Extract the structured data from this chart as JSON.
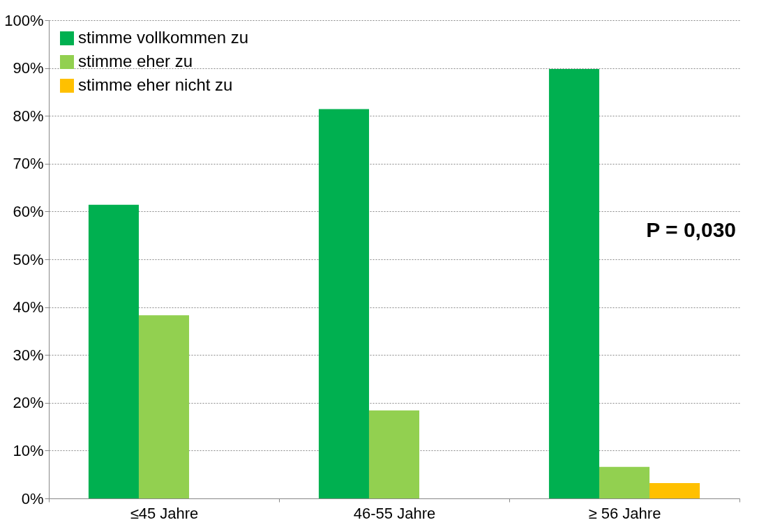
{
  "chart_data": {
    "type": "bar",
    "categories": [
      "≤45 Jahre",
      "46-55 Jahre",
      "≥ 56 Jahre"
    ],
    "series": [
      {
        "name": "stimme vollkommen zu",
        "color": "#00b050",
        "values": [
          61.4,
          81.4,
          89.8
        ]
      },
      {
        "name": "stimme eher zu",
        "color": "#92d050",
        "values": [
          38.3,
          18.4,
          6.6
        ]
      },
      {
        "name": "stimme eher nicht zu",
        "color": "#ffc000",
        "values": [
          null,
          null,
          3.2
        ]
      }
    ],
    "ylim": [
      0,
      100
    ],
    "yticks": [
      {
        "value": 0,
        "label": "0%"
      },
      {
        "value": 10,
        "label": "10%"
      },
      {
        "value": 20,
        "label": "20%"
      },
      {
        "value": 30,
        "label": "30%"
      },
      {
        "value": 40,
        "label": "40%"
      },
      {
        "value": 50,
        "label": "50%"
      },
      {
        "value": 60,
        "label": "60%"
      },
      {
        "value": 70,
        "label": "70%"
      },
      {
        "value": 80,
        "label": "80%"
      },
      {
        "value": 90,
        "label": "90%"
      },
      {
        "value": 100,
        "label": "100%"
      }
    ],
    "grid": "y",
    "legend": "top left",
    "annotations": [
      "P = 0,030"
    ]
  }
}
